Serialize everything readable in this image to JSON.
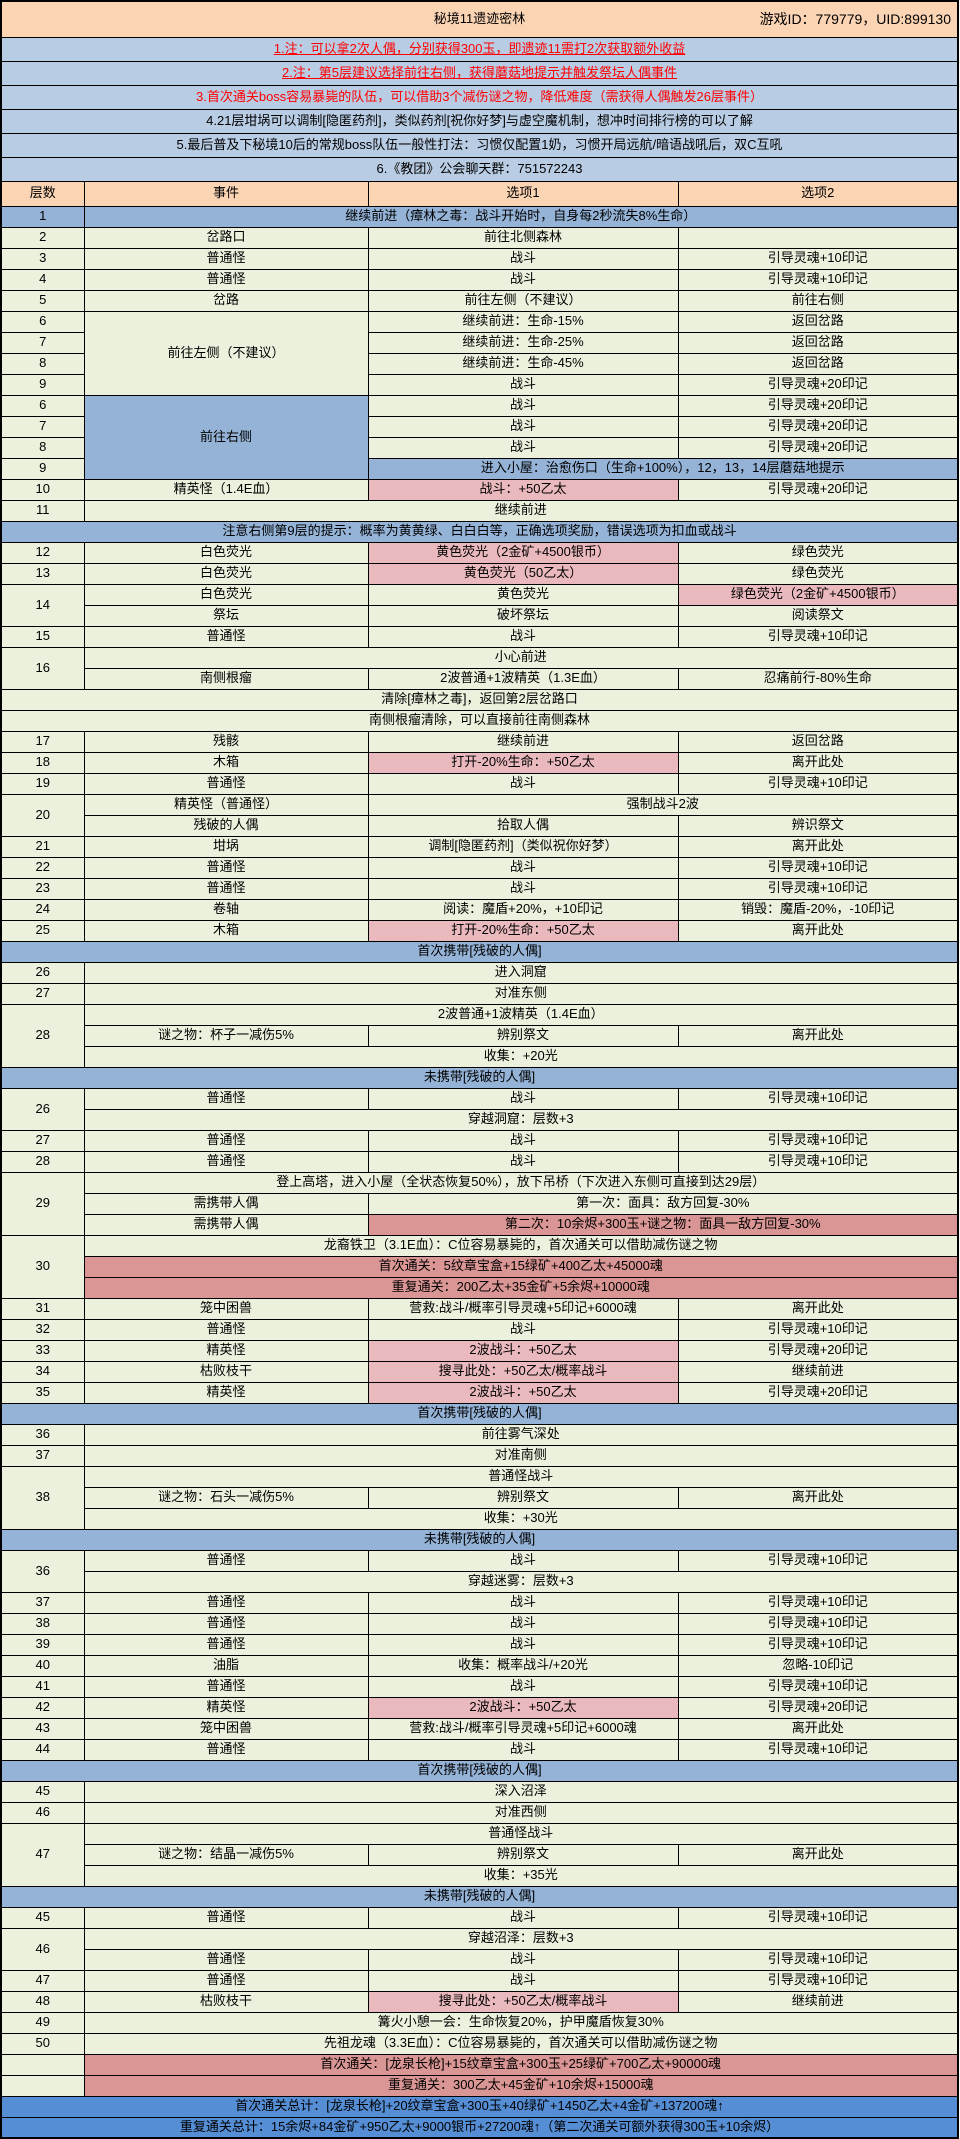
{
  "title_bar": {
    "title": "秘境11遗迹密林",
    "game_id": "游戏ID：779779，UID:899130"
  },
  "notes": [
    {
      "text": "1.注：可以拿2次人偶，分别获得300玉，即遗迹11需打2次获取额外收益",
      "style": "ru"
    },
    {
      "text": "2.注：第5层建议选择前往右侧，获得蘑菇地提示并触发祭坛人偶事件",
      "style": "ru"
    },
    {
      "text": "3.首次通关boss容易暴毙的队伍，可以借助3个减伤谜之物，降低难度（需获得人偶触发26层事件）",
      "style": "r"
    },
    {
      "text": "4.21层坩埚可以调制[隐匿药剂]，类似药剂[祝你好梦]与虚空魔机制，想冲时间排行榜的可以了解",
      "style": "n"
    },
    {
      "text": "5.最后普及下秘境10后的常规boss队伍一般性打法：习惯仅配置1奶，习惯开局远航/暗语战吼后，双C互吼",
      "style": "n"
    },
    {
      "text": "6.《教团》公会聊天群：751572243",
      "style": "n"
    }
  ],
  "palette": {
    "header_orange": "#fbd4b4",
    "notes_blue": "#b8cce4",
    "row_green": "#ebf1dd",
    "bar_blue": "#95b3d7",
    "light_pink": "#eab9bd",
    "dark_pink": "#da9694",
    "summary_blue": "#558ed5",
    "warning_red": "#ff0000"
  },
  "table": {
    "columns": [
      "层数",
      "事件",
      "选项1",
      "选项2"
    ],
    "rows": [
      [
        {
          "t": "1",
          "bg": "b"
        },
        {
          "t": "继续前进（瘴林之毒：战斗开始时，自身每2秒流失8%生命）",
          "cs": 3,
          "bg": "b"
        }
      ],
      [
        {
          "t": "2"
        },
        {
          "t": "岔路口"
        },
        {
          "t": "前往北侧森林"
        },
        {
          "t": ""
        }
      ],
      [
        {
          "t": "3"
        },
        {
          "t": "普通怪"
        },
        {
          "t": "战斗"
        },
        {
          "t": "引导灵魂+10印记"
        }
      ],
      [
        {
          "t": "4"
        },
        {
          "t": "普通怪"
        },
        {
          "t": "战斗"
        },
        {
          "t": "引导灵魂+10印记"
        }
      ],
      [
        {
          "t": "5"
        },
        {
          "t": "岔路"
        },
        {
          "t": "前往左侧（不建议）"
        },
        {
          "t": "前往右侧"
        }
      ],
      [
        {
          "t": "6"
        },
        {
          "t": "前往左侧（不建议）",
          "rs": 4
        },
        {
          "t": "继续前进：生命-15%"
        },
        {
          "t": "返回岔路"
        }
      ],
      [
        {
          "t": "7"
        },
        {
          "t": "继续前进：生命-25%"
        },
        {
          "t": "返回岔路"
        }
      ],
      [
        {
          "t": "8"
        },
        {
          "t": "继续前进：生命-45%"
        },
        {
          "t": "返回岔路"
        }
      ],
      [
        {
          "t": "9"
        },
        {
          "t": "战斗"
        },
        {
          "t": "引导灵魂+20印记"
        }
      ],
      [
        {
          "t": "6"
        },
        {
          "t": "前往右侧",
          "rs": 4,
          "bg": "b"
        },
        {
          "t": "战斗"
        },
        {
          "t": "引导灵魂+20印记"
        }
      ],
      [
        {
          "t": "7"
        },
        {
          "t": "战斗"
        },
        {
          "t": "引导灵魂+20印记"
        }
      ],
      [
        {
          "t": "8"
        },
        {
          "t": "战斗"
        },
        {
          "t": "引导灵魂+20印记"
        }
      ],
      [
        {
          "t": "9"
        },
        {
          "t": "进入小屋：治愈伤口（生命+100%），12，13，14层蘑菇地提示",
          "cs": 2,
          "bg": "b"
        }
      ],
      [
        {
          "t": "10"
        },
        {
          "t": "精英怪（1.4E血）"
        },
        {
          "t": "战斗：+50乙太",
          "bg": "p"
        },
        {
          "t": "引导灵魂+20印记"
        }
      ],
      [
        {
          "t": "11"
        },
        {
          "t": "继续前进",
          "cs": 3
        }
      ],
      [
        {
          "t": "注意右侧第9层的提示：概率为黄黄绿、白白白等，正确选项奖励，错误选项为扣血或战斗",
          "cs": 4,
          "bg": "b"
        }
      ],
      [
        {
          "t": "12"
        },
        {
          "t": "白色荧光"
        },
        {
          "t": "黄色荧光（2金矿+4500银币）",
          "bg": "p"
        },
        {
          "t": "绿色荧光"
        }
      ],
      [
        {
          "t": "13"
        },
        {
          "t": "白色荧光"
        },
        {
          "t": "黄色荧光（50乙太）",
          "bg": "p"
        },
        {
          "t": "绿色荧光"
        }
      ],
      [
        {
          "t": "14",
          "rs": 2
        },
        {
          "t": "白色荧光"
        },
        {
          "t": "黄色荧光"
        },
        {
          "t": "绿色荧光（2金矿+4500银币）",
          "bg": "p"
        }
      ],
      [
        {
          "t": "祭坛"
        },
        {
          "t": "破坏祭坛"
        },
        {
          "t": "阅读祭文"
        }
      ],
      [
        {
          "t": "15"
        },
        {
          "t": "普通怪"
        },
        {
          "t": "战斗"
        },
        {
          "t": "引导灵魂+10印记"
        }
      ],
      [
        {
          "t": "16",
          "rs": 2
        },
        {
          "t": "小心前进",
          "cs": 3
        }
      ],
      [
        {
          "t": "南侧根瘤"
        },
        {
          "t": "2波普通+1波精英（1.3E血）"
        },
        {
          "t": "忍痛前行-80%生命"
        }
      ],
      [
        {
          "t": "清除[瘴林之毒]，返回第2层岔路口",
          "cs": 4
        }
      ],
      [
        {
          "t": "南侧根瘤清除，可以直接前往南侧森林",
          "cs": 4
        }
      ],
      [
        {
          "t": "17"
        },
        {
          "t": "残骸"
        },
        {
          "t": "继续前进"
        },
        {
          "t": "返回岔路"
        }
      ],
      [
        {
          "t": "18"
        },
        {
          "t": "木箱"
        },
        {
          "t": "打开-20%生命：+50乙太",
          "bg": "p"
        },
        {
          "t": "离开此处"
        }
      ],
      [
        {
          "t": "19"
        },
        {
          "t": "普通怪"
        },
        {
          "t": "战斗"
        },
        {
          "t": "引导灵魂+10印记"
        }
      ],
      [
        {
          "t": "20",
          "rs": 2
        },
        {
          "t": "精英怪（普通怪）"
        },
        {
          "t": "强制战斗2波",
          "cs": 2
        }
      ],
      [
        {
          "t": "残破的人偶"
        },
        {
          "t": "拾取人偶"
        },
        {
          "t": "辨识祭文"
        }
      ],
      [
        {
          "t": "21"
        },
        {
          "t": "坩埚"
        },
        {
          "t": "调制[隐匿药剂]（类似祝你好梦）"
        },
        {
          "t": "离开此处"
        }
      ],
      [
        {
          "t": "22"
        },
        {
          "t": "普通怪"
        },
        {
          "t": "战斗"
        },
        {
          "t": "引导灵魂+10印记"
        }
      ],
      [
        {
          "t": "23"
        },
        {
          "t": "普通怪"
        },
        {
          "t": "战斗"
        },
        {
          "t": "引导灵魂+10印记"
        }
      ],
      [
        {
          "t": "24"
        },
        {
          "t": "卷轴"
        },
        {
          "t": "阅读：魔盾+20%，+10印记"
        },
        {
          "t": "销毁：魔盾-20%，-10印记"
        }
      ],
      [
        {
          "t": "25"
        },
        {
          "t": "木箱"
        },
        {
          "t": "打开-20%生命：+50乙太",
          "bg": "p"
        },
        {
          "t": "离开此处"
        }
      ],
      [
        {
          "t": "首次携带[残破的人偶]",
          "cs": 4,
          "bg": "b"
        }
      ],
      [
        {
          "t": "26"
        },
        {
          "t": "进入洞窟",
          "cs": 3
        }
      ],
      [
        {
          "t": "27"
        },
        {
          "t": "对准东侧",
          "cs": 3
        }
      ],
      [
        {
          "t": "28",
          "rs": 3
        },
        {
          "t": "2波普通+1波精英（1.4E血）",
          "cs": 3
        }
      ],
      [
        {
          "t": "谜之物：杯子一减伤5%"
        },
        {
          "t": "辨别祭文"
        },
        {
          "t": "离开此处"
        }
      ],
      [
        {
          "t": "收集：+20光",
          "cs": 3
        }
      ],
      [
        {
          "t": "未携带[残破的人偶]",
          "cs": 4,
          "bg": "b"
        }
      ],
      [
        {
          "t": "26",
          "rs": 2
        },
        {
          "t": "普通怪"
        },
        {
          "t": "战斗"
        },
        {
          "t": "引导灵魂+10印记"
        }
      ],
      [
        {
          "t": "穿越洞窟：层数+3",
          "cs": 3
        }
      ],
      [
        {
          "t": "27"
        },
        {
          "t": "普通怪"
        },
        {
          "t": "战斗"
        },
        {
          "t": "引导灵魂+10印记"
        }
      ],
      [
        {
          "t": "28"
        },
        {
          "t": "普通怪"
        },
        {
          "t": "战斗"
        },
        {
          "t": "引导灵魂+10印记"
        }
      ],
      [
        {
          "t": "29",
          "rs": 3
        },
        {
          "t": "登上高塔，进入小屋（全状态恢复50%），放下吊桥（下次进入东侧可直接到达29层）",
          "cs": 3
        }
      ],
      [
        {
          "t": "需携带人偶"
        },
        {
          "t": "第一次：面具：敌方回复-30%",
          "cs": 2,
          "al": "l"
        }
      ],
      [
        {
          "t": "需携带人偶"
        },
        {
          "t": "第二次：10余烬+300玉+谜之物：面具一敌方回复-30%",
          "cs": 2,
          "bg": "k",
          "al": "l"
        }
      ],
      [
        {
          "t": "30",
          "rs": 3
        },
        {
          "t": "龙裔铁卫（3.1E血）：C位容易暴毙的，首次通关可以借助减伤谜之物",
          "cs": 3
        }
      ],
      [
        {
          "t": "首次通关：5纹章宝盒+15绿矿+400乙太+45000魂",
          "cs": 3,
          "bg": "k",
          "al": "l"
        }
      ],
      [
        {
          "t": "重复通关：200乙太+35金矿+5余烬+10000魂",
          "cs": 3,
          "bg": "k",
          "al": "l"
        }
      ],
      [
        {
          "t": "31"
        },
        {
          "t": "笼中困兽"
        },
        {
          "t": "营救:战斗/概率引导灵魂+5印记+6000魂"
        },
        {
          "t": "离开此处"
        }
      ],
      [
        {
          "t": "32"
        },
        {
          "t": "普通怪"
        },
        {
          "t": "战斗"
        },
        {
          "t": "引导灵魂+10印记"
        }
      ],
      [
        {
          "t": "33"
        },
        {
          "t": "精英怪"
        },
        {
          "t": "2波战斗：+50乙太",
          "bg": "p"
        },
        {
          "t": "引导灵魂+20印记"
        }
      ],
      [
        {
          "t": "34"
        },
        {
          "t": "枯败枝干"
        },
        {
          "t": "搜寻此处：+50乙太/概率战斗",
          "bg": "p"
        },
        {
          "t": "继续前进"
        }
      ],
      [
        {
          "t": "35"
        },
        {
          "t": "精英怪"
        },
        {
          "t": "2波战斗：+50乙太",
          "bg": "p"
        },
        {
          "t": "引导灵魂+20印记"
        }
      ],
      [
        {
          "t": "首次携带[残破的人偶]",
          "cs": 4,
          "bg": "b"
        }
      ],
      [
        {
          "t": "36"
        },
        {
          "t": "前往雾气深处",
          "cs": 3
        }
      ],
      [
        {
          "t": "37"
        },
        {
          "t": "对准南侧",
          "cs": 3
        }
      ],
      [
        {
          "t": "38",
          "rs": 3
        },
        {
          "t": "普通怪战斗",
          "cs": 3
        }
      ],
      [
        {
          "t": "谜之物：石头一减伤5%"
        },
        {
          "t": "辨别祭文"
        },
        {
          "t": "离开此处"
        }
      ],
      [
        {
          "t": "收集：+30光",
          "cs": 3
        }
      ],
      [
        {
          "t": "未携带[残破的人偶]",
          "cs": 4,
          "bg": "b"
        }
      ],
      [
        {
          "t": "36",
          "rs": 2
        },
        {
          "t": "普通怪"
        },
        {
          "t": "战斗"
        },
        {
          "t": "引导灵魂+10印记"
        }
      ],
      [
        {
          "t": "穿越迷雾：层数+3",
          "cs": 3
        }
      ],
      [
        {
          "t": "37"
        },
        {
          "t": "普通怪"
        },
        {
          "t": "战斗"
        },
        {
          "t": "引导灵魂+10印记"
        }
      ],
      [
        {
          "t": "38"
        },
        {
          "t": "普通怪"
        },
        {
          "t": "战斗"
        },
        {
          "t": "引导灵魂+10印记"
        }
      ],
      [
        {
          "t": "39"
        },
        {
          "t": "普通怪"
        },
        {
          "t": "战斗"
        },
        {
          "t": "引导灵魂+10印记"
        }
      ],
      [
        {
          "t": "40"
        },
        {
          "t": "油脂"
        },
        {
          "t": "收集：概率战斗/+20光"
        },
        {
          "t": "忽略-10印记"
        }
      ],
      [
        {
          "t": "41"
        },
        {
          "t": "普通怪"
        },
        {
          "t": "战斗"
        },
        {
          "t": "引导灵魂+10印记"
        }
      ],
      [
        {
          "t": "42"
        },
        {
          "t": "精英怪"
        },
        {
          "t": "2波战斗：+50乙太",
          "bg": "p"
        },
        {
          "t": "引导灵魂+20印记"
        }
      ],
      [
        {
          "t": "43"
        },
        {
          "t": "笼中困兽"
        },
        {
          "t": "营救:战斗/概率引导灵魂+5印记+6000魂"
        },
        {
          "t": "离开此处"
        }
      ],
      [
        {
          "t": "44"
        },
        {
          "t": "普通怪"
        },
        {
          "t": "战斗"
        },
        {
          "t": "引导灵魂+10印记"
        }
      ],
      [
        {
          "t": "首次携带[残破的人偶]",
          "cs": 4,
          "bg": "b"
        }
      ],
      [
        {
          "t": "45"
        },
        {
          "t": "深入沼泽",
          "cs": 3
        }
      ],
      [
        {
          "t": "46"
        },
        {
          "t": "对准西侧",
          "cs": 3
        }
      ],
      [
        {
          "t": "47",
          "rs": 3
        },
        {
          "t": "普通怪战斗",
          "cs": 3
        }
      ],
      [
        {
          "t": "谜之物：结晶一减伤5%"
        },
        {
          "t": "辨别祭文"
        },
        {
          "t": "离开此处"
        }
      ],
      [
        {
          "t": "收集：+35光",
          "cs": 3
        }
      ],
      [
        {
          "t": "未携带[残破的人偶]",
          "cs": 4,
          "bg": "b"
        }
      ],
      [
        {
          "t": "45"
        },
        {
          "t": "普通怪"
        },
        {
          "t": "战斗"
        },
        {
          "t": "引导灵魂+10印记"
        }
      ],
      [
        {
          "t": "46",
          "rs": 2
        },
        {
          "t": "穿越沼泽：层数+3",
          "cs": 3
        }
      ],
      [
        {
          "t": "普通怪"
        },
        {
          "t": "战斗"
        },
        {
          "t": "引导灵魂+10印记"
        }
      ],
      [
        {
          "t": "47"
        },
        {
          "t": "普通怪"
        },
        {
          "t": "战斗"
        },
        {
          "t": "引导灵魂+10印记"
        }
      ],
      [
        {
          "t": "48"
        },
        {
          "t": "枯败枝干"
        },
        {
          "t": "搜寻此处：+50乙太/概率战斗",
          "bg": "p"
        },
        {
          "t": "继续前进"
        }
      ],
      [
        {
          "t": "49"
        },
        {
          "t": "篝火小憩一会：生命恢复20%，护甲魔盾恢复30%",
          "cs": 3
        }
      ],
      [
        {
          "t": "50"
        },
        {
          "t": "先祖龙魂（3.3E血）：C位容易暴毙的，首次通关可以借助减伤谜之物",
          "cs": 3
        }
      ],
      [
        {
          "t": ""
        },
        {
          "t": "首次通关：[龙泉长枪]+15纹章宝盒+300玉+25绿矿+700乙太+90000魂",
          "cs": 3,
          "bg": "k",
          "al": "l"
        }
      ],
      [
        {
          "t": ""
        },
        {
          "t": "重复通关：300乙太+45金矿+10余烬+15000魂",
          "cs": 3,
          "bg": "k",
          "al": "l"
        }
      ],
      [
        {
          "t": "首次通关总计：[龙泉长枪]+20纹章宝盒+300玉+40绿矿+1450乙太+4金矿+137200魂↑",
          "cs": 4,
          "bg": "t",
          "al": "l"
        }
      ],
      [
        {
          "t": "重复通关总计：15余烬+84金矿+950乙太+9000银币+27200魂↑（第二次通关可额外获得300玉+10余烬）",
          "cs": 4,
          "bg": "t",
          "al": "l"
        }
      ]
    ]
  }
}
